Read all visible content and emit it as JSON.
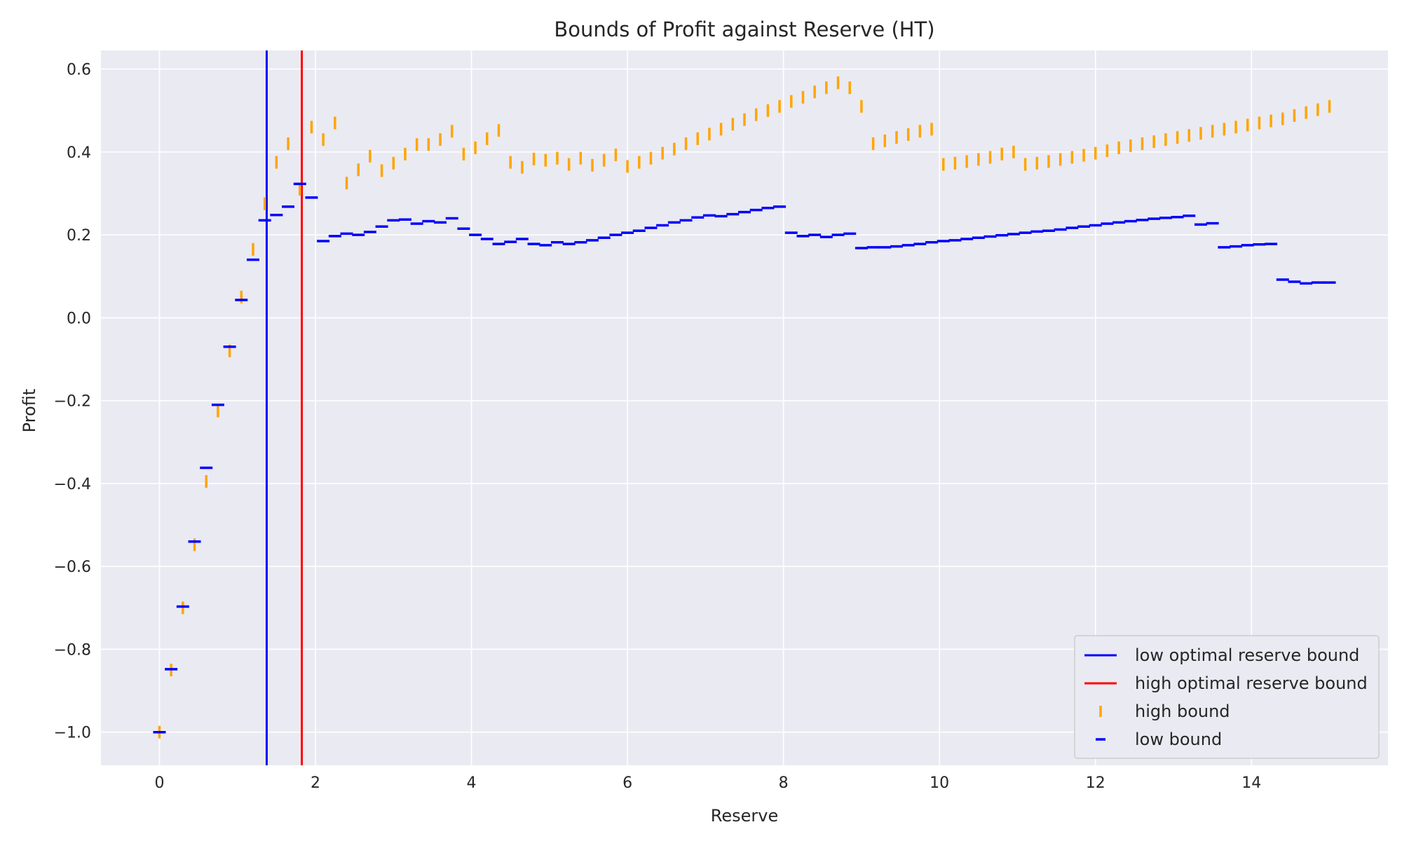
{
  "chart_data": {
    "type": "scatter",
    "title": "Bounds of Profit against Reserve (HT)",
    "xlabel": "Reserve",
    "ylabel": "Profit",
    "xlim": [
      -0.75,
      15.75
    ],
    "ylim": [
      -1.08,
      0.645
    ],
    "x_ticks": [
      0,
      2,
      4,
      6,
      8,
      10,
      12,
      14
    ],
    "y_ticks": [
      -1.0,
      -0.8,
      -0.6,
      -0.4,
      -0.2,
      0.0,
      0.2,
      0.4,
      0.6
    ],
    "x_tick_labels": [
      "0",
      "2",
      "4",
      "6",
      "8",
      "10",
      "12",
      "14"
    ],
    "y_tick_labels": [
      "−1.0",
      "−0.8",
      "−0.6",
      "−0.4",
      "−0.2",
      "0.0",
      "0.2",
      "0.4",
      "0.6"
    ],
    "grid": true,
    "legend_position": "lower right",
    "vlines": [
      {
        "name": "low optimal reserve bound",
        "x": 1.375,
        "color": "#0000ff"
      },
      {
        "name": "high optimal reserve bound",
        "x": 1.825,
        "color": "#ff0000"
      }
    ],
    "series": [
      {
        "name": "high bound",
        "marker": "|",
        "color": "#ffa500",
        "x": [
          0.0,
          0.15,
          0.3,
          0.45,
          0.6,
          0.75,
          0.9,
          1.05,
          1.2,
          1.35,
          1.5,
          1.65,
          1.8,
          1.95,
          2.1,
          2.25,
          2.4,
          2.55,
          2.7,
          2.85,
          3.0,
          3.15,
          3.3,
          3.45,
          3.6,
          3.75,
          3.9,
          4.05,
          4.2,
          4.35,
          4.5,
          4.65,
          4.8,
          4.95,
          5.1,
          5.25,
          5.4,
          5.55,
          5.7,
          5.85,
          6.0,
          6.15,
          6.3,
          6.45,
          6.6,
          6.75,
          6.9,
          7.05,
          7.2,
          7.35,
          7.5,
          7.65,
          7.8,
          7.95,
          8.1,
          8.25,
          8.4,
          8.55,
          8.7,
          8.85,
          9.0,
          9.15,
          9.3,
          9.45,
          9.6,
          9.75,
          9.9,
          10.05,
          10.2,
          10.35,
          10.5,
          10.65,
          10.8,
          10.95,
          11.1,
          11.25,
          11.4,
          11.55,
          11.7,
          11.85,
          12.0,
          12.15,
          12.3,
          12.45,
          12.6,
          12.75,
          12.9,
          13.05,
          13.2,
          13.35,
          13.5,
          13.65,
          13.8,
          13.95,
          14.1,
          14.25,
          14.4,
          14.55,
          14.7,
          14.85,
          15.0
        ],
        "y": [
          -1.0,
          -0.85,
          -0.7,
          -0.548,
          -0.395,
          -0.225,
          -0.08,
          0.05,
          0.165,
          0.275,
          0.375,
          0.42,
          0.31,
          0.46,
          0.43,
          0.47,
          0.325,
          0.357,
          0.39,
          0.355,
          0.373,
          0.395,
          0.418,
          0.418,
          0.43,
          0.45,
          0.395,
          0.41,
          0.432,
          0.452,
          0.375,
          0.363,
          0.383,
          0.38,
          0.385,
          0.37,
          0.385,
          0.368,
          0.38,
          0.393,
          0.365,
          0.375,
          0.385,
          0.397,
          0.407,
          0.42,
          0.432,
          0.443,
          0.455,
          0.467,
          0.478,
          0.49,
          0.5,
          0.51,
          0.522,
          0.532,
          0.545,
          0.555,
          0.567,
          0.555,
          0.51,
          0.42,
          0.427,
          0.435,
          0.442,
          0.45,
          0.455,
          0.37,
          0.373,
          0.377,
          0.382,
          0.387,
          0.395,
          0.4,
          0.37,
          0.373,
          0.377,
          0.382,
          0.387,
          0.392,
          0.397,
          0.403,
          0.41,
          0.415,
          0.42,
          0.425,
          0.43,
          0.435,
          0.44,
          0.445,
          0.45,
          0.455,
          0.46,
          0.465,
          0.47,
          0.475,
          0.48,
          0.488,
          0.495,
          0.502,
          0.51
        ]
      },
      {
        "name": "low bound",
        "marker": "_",
        "color": "#0000ff",
        "x": [
          0.0,
          0.15,
          0.3,
          0.45,
          0.6,
          0.75,
          0.9,
          1.05,
          1.2,
          1.35,
          1.5,
          1.65,
          1.8,
          1.95,
          2.1,
          2.25,
          2.4,
          2.55,
          2.7,
          2.85,
          3.0,
          3.15,
          3.3,
          3.45,
          3.6,
          3.75,
          3.9,
          4.05,
          4.2,
          4.35,
          4.5,
          4.65,
          4.8,
          4.95,
          5.1,
          5.25,
          5.4,
          5.55,
          5.7,
          5.85,
          6.0,
          6.15,
          6.3,
          6.45,
          6.6,
          6.75,
          6.9,
          7.05,
          7.2,
          7.35,
          7.5,
          7.65,
          7.8,
          7.95,
          8.1,
          8.25,
          8.4,
          8.55,
          8.7,
          8.85,
          9.0,
          9.15,
          9.3,
          9.45,
          9.6,
          9.75,
          9.9,
          10.05,
          10.2,
          10.35,
          10.5,
          10.65,
          10.8,
          10.95,
          11.1,
          11.25,
          11.4,
          11.55,
          11.7,
          11.85,
          12.0,
          12.15,
          12.3,
          12.45,
          12.6,
          12.75,
          12.9,
          13.05,
          13.2,
          13.35,
          13.5,
          13.65,
          13.8,
          13.95,
          14.1,
          14.25,
          14.4,
          14.55,
          14.7,
          14.85,
          15.0
        ],
        "y": [
          -1.0,
          -0.848,
          -0.697,
          -0.54,
          -0.362,
          -0.21,
          -0.07,
          0.043,
          0.14,
          0.235,
          0.248,
          0.268,
          0.323,
          0.29,
          0.185,
          0.197,
          0.203,
          0.2,
          0.207,
          0.22,
          0.235,
          0.237,
          0.227,
          0.233,
          0.23,
          0.24,
          0.215,
          0.2,
          0.19,
          0.178,
          0.183,
          0.19,
          0.178,
          0.175,
          0.182,
          0.178,
          0.182,
          0.187,
          0.193,
          0.2,
          0.205,
          0.21,
          0.217,
          0.223,
          0.23,
          0.235,
          0.242,
          0.247,
          0.245,
          0.25,
          0.255,
          0.26,
          0.265,
          0.268,
          0.205,
          0.197,
          0.2,
          0.195,
          0.2,
          0.203,
          0.168,
          0.17,
          0.17,
          0.172,
          0.175,
          0.178,
          0.182,
          0.185,
          0.187,
          0.19,
          0.193,
          0.196,
          0.199,
          0.202,
          0.205,
          0.208,
          0.21,
          0.213,
          0.217,
          0.22,
          0.223,
          0.227,
          0.23,
          0.233,
          0.236,
          0.239,
          0.241,
          0.243,
          0.246,
          0.225,
          0.228,
          0.17,
          0.172,
          0.175,
          0.177,
          0.178,
          0.092,
          0.087,
          0.083,
          0.085,
          0.085
        ]
      }
    ]
  }
}
